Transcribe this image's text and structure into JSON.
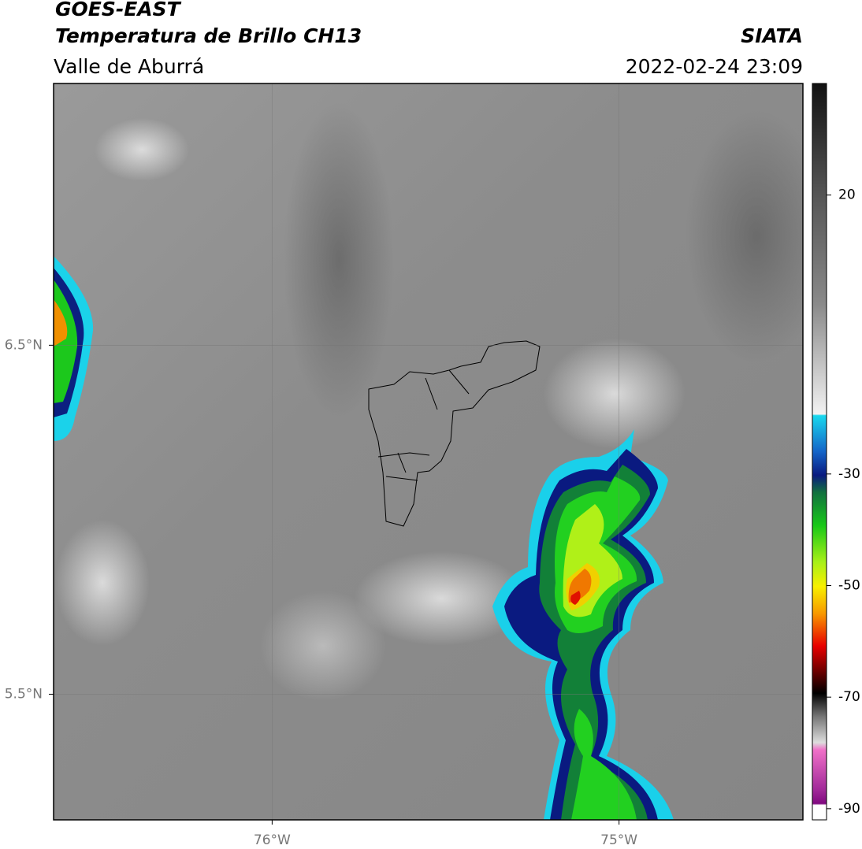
{
  "header": {
    "title": "GOES-EAST",
    "subtitle": "Temperatura de Brillo CH13",
    "region": "Valle de Aburrá",
    "source": "SIATA",
    "datetime": "2022-02-24 23:09"
  },
  "map": {
    "xlim": [
      -76.63,
      -74.47
    ],
    "ylim": [
      5.14,
      7.25
    ],
    "xticks": [
      {
        "value": -76,
        "label": "76°W"
      },
      {
        "value": -75,
        "label": "75°W"
      }
    ],
    "yticks": [
      {
        "value": 6.5,
        "label": "6.5°N"
      },
      {
        "value": 5.5,
        "label": "5.5°N"
      }
    ],
    "grid": true
  },
  "colorbar": {
    "lim": [
      -92,
      40
    ],
    "ticks": [
      20,
      -30,
      -50,
      -70,
      -90
    ]
  }
}
